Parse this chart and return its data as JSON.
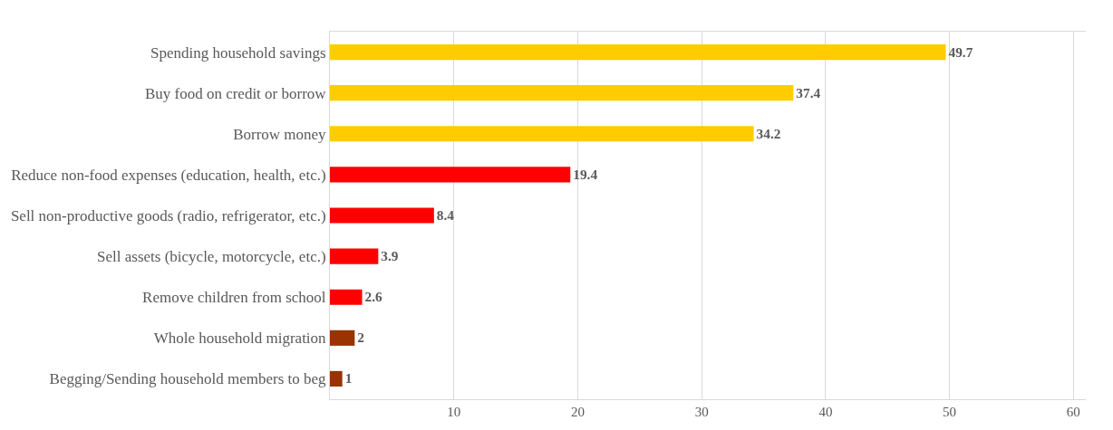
{
  "chart_data": {
    "type": "bar",
    "orientation": "horizontal",
    "categories": [
      "Spending household savings",
      "Buy food on credit or borrow",
      "Borrow money",
      "Reduce non-food expenses (education, health, etc.)",
      "Sell non-productive goods (radio, refrigerator, etc.)",
      "Sell assets (bicycle, motorcycle, etc.)",
      "Remove children from school",
      "Whole household migration",
      "Begging/Sending household members to beg"
    ],
    "values": [
      49.7,
      37.4,
      34.2,
      19.4,
      8.4,
      3.9,
      2.6,
      2,
      1
    ],
    "colors": [
      "#ffcc00",
      "#ffcc00",
      "#ffcc00",
      "#ff0000",
      "#ff0000",
      "#ff0000",
      "#ff0000",
      "#993300",
      "#993300"
    ],
    "xlim": [
      0,
      61
    ],
    "xticks": [
      {
        "value": 0,
        "label": null
      },
      10,
      20,
      30,
      40,
      50,
      60
    ],
    "grid": "x",
    "data_labels": true
  }
}
